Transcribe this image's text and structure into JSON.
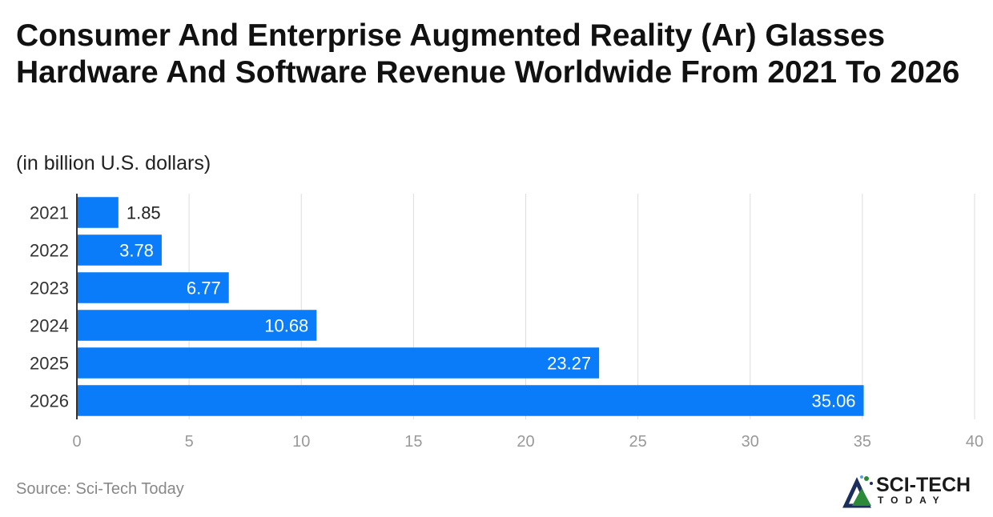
{
  "chart_data": {
    "type": "bar",
    "orientation": "horizontal",
    "title": "Consumer And Enterprise Augmented Reality (Ar) Glasses Hardware And Software Revenue Worldwide From 2021 To 2026",
    "subtitle": "(in billion U.S. dollars)",
    "categories": [
      "2021",
      "2022",
      "2023",
      "2024",
      "2025",
      "2026"
    ],
    "values": [
      1.85,
      3.78,
      6.77,
      10.68,
      23.27,
      35.06
    ],
    "value_labels": [
      "1.85",
      "3.78",
      "6.77",
      "10.68",
      "23.27",
      "35.06"
    ],
    "xlim": [
      0,
      40
    ],
    "xticks": [
      0,
      5,
      10,
      15,
      20,
      25,
      30,
      35,
      40
    ],
    "grid": true,
    "bar_color": "#0a7cf9",
    "source": "Source: Sci-Tech Today"
  },
  "logo": {
    "top": "SCI-TECH",
    "bottom": "TODAY"
  }
}
